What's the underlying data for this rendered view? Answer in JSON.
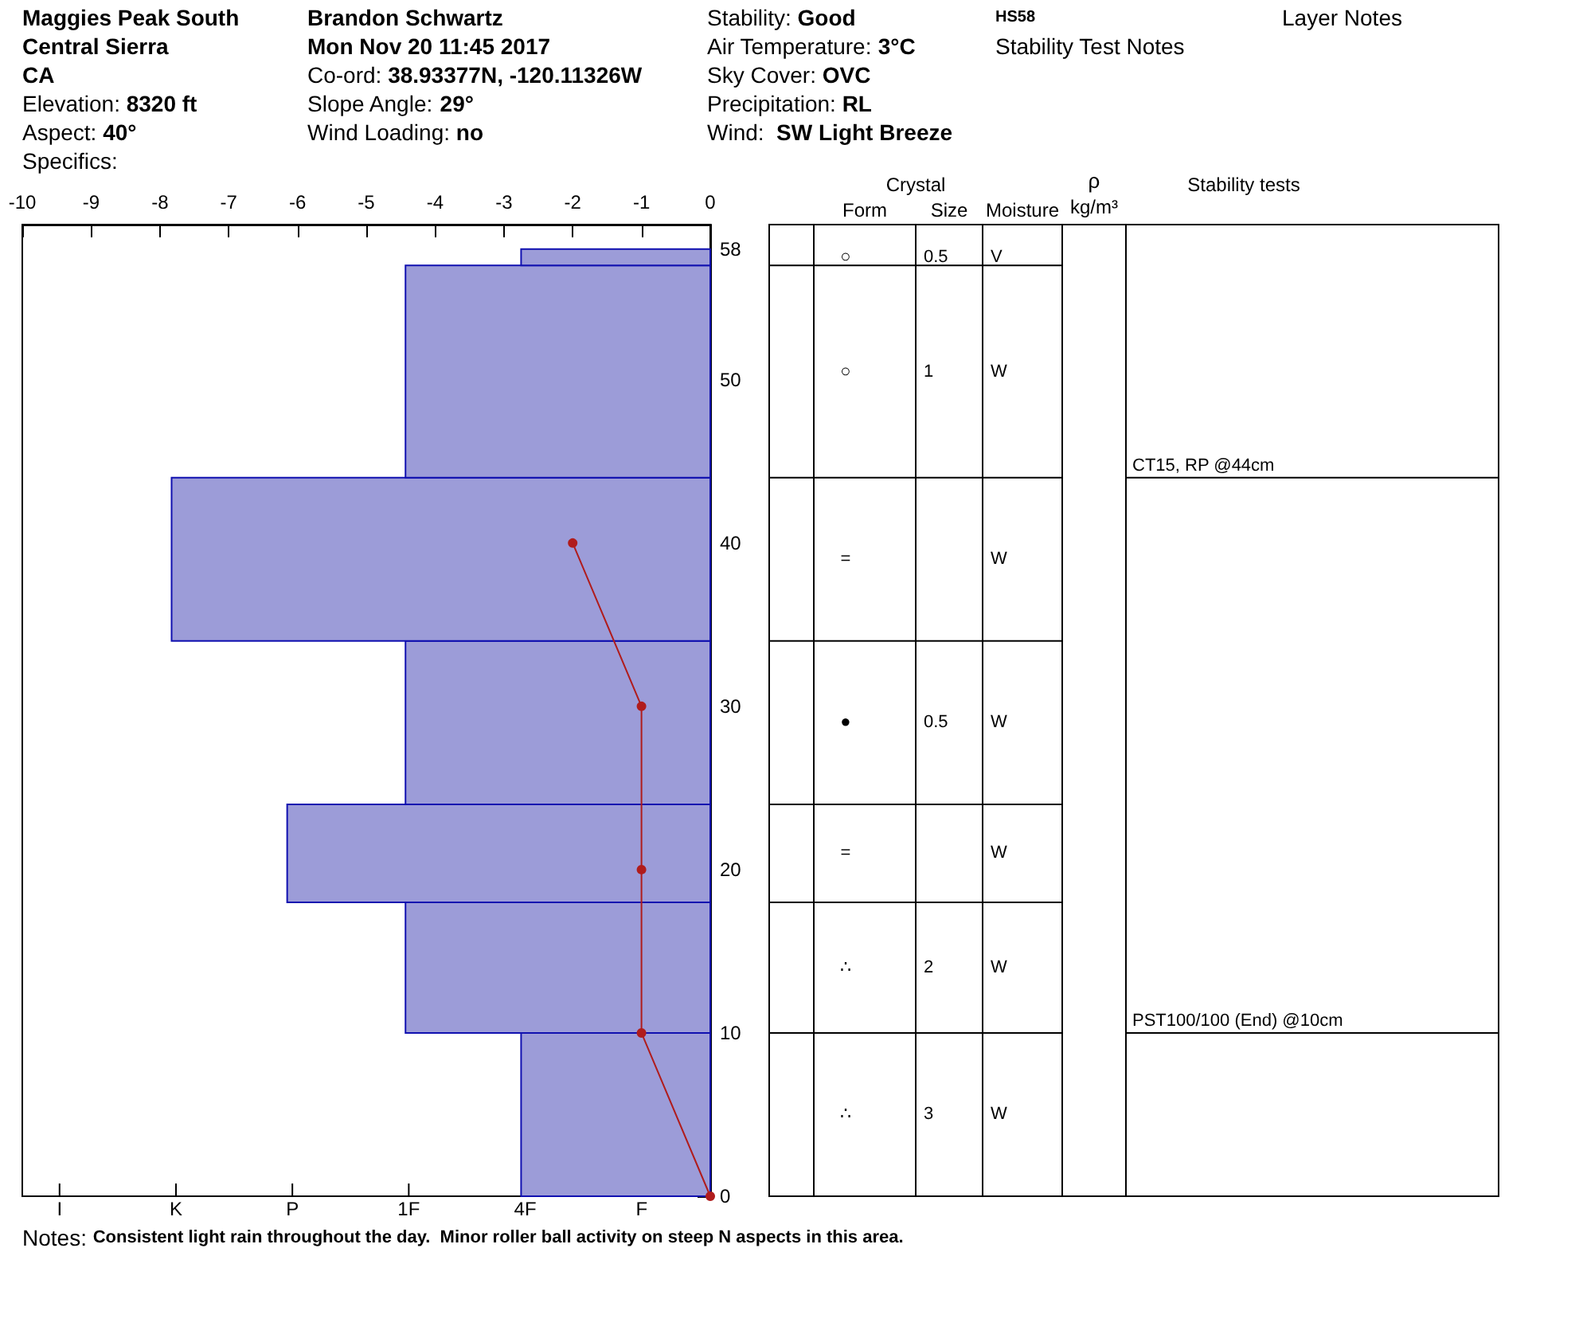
{
  "chart_data": [
    {
      "type": "histogram",
      "orientation": "horizontal",
      "annotations": [
        "Maggies Peak South",
        "Central Sierra",
        "CA",
        "Elevation: 8320 ft",
        "Aspect: 40°",
        "Specifics:",
        "Brandon Schwartz",
        "Mon Nov 20 11:45 2017",
        "Co-ord: 38.93377N, -120.11326W",
        "Slope Angle: 29°",
        "Wind Loading: no",
        "Stability: Good",
        "Air Temperature: 3°C",
        "Sky Cover: OVC",
        "Precipitation: RL",
        "Wind:  SW Light Breeze",
        "Notes: Consistent light rain throughout the day.  Minor roller ball activity on steep N aspects in this area.",
        "I",
        "K",
        "P",
        "1F",
        "4F",
        "F"
      ],
      "series": [
        {
          "type": "histogram",
          "color": "#9c9cd8",
          "bins": [
            0,
            10,
            18,
            24,
            34,
            44,
            57,
            58
          ],
          "values": [
            -2.75,
            -4.43,
            -6.15,
            -4.43,
            -7.83,
            -4.43,
            -2.75
          ]
        },
        {
          "type": "line",
          "color": "#b01c1c",
          "marker": "circle",
          "x": [
            0,
            10,
            20,
            30,
            40
          ],
          "values": [
            0,
            -1,
            -1,
            -1,
            -2
          ]
        }
      ],
      "xlim": [
        -10,
        0
      ],
      "xticks": [
        -10,
        -9,
        -8,
        -7,
        -6,
        -5,
        -4,
        -3,
        -2,
        -1,
        0
      ],
      "ylim": [
        0,
        59.5
      ],
      "yticks": [
        0,
        10,
        20,
        30,
        40,
        50,
        58
      ],
      "grid": false
    },
    {
      "type": "other",
      "categories": [
        "Form",
        "Size",
        "Moisture",
        "Stability tests"
      ],
      "annotations": [
        "Crystal",
        "ρ",
        "kg/m³",
        "HS58",
        "Stability Test Notes",
        "Layer Notes"
      ],
      "cell_labels": [
        [
          "○",
          "0.5",
          "V",
          null
        ],
        [
          "○",
          "1",
          "W",
          "CT15, RP @44cm"
        ],
        [
          "=",
          null,
          "W",
          null
        ],
        [
          "●",
          "0.5",
          "W",
          null
        ],
        [
          "=",
          null,
          "W",
          null
        ],
        [
          "∴",
          "2",
          "W",
          "PST100/100 (End) @10cm"
        ],
        [
          "∴",
          "3",
          "W",
          null
        ]
      ]
    }
  ]
}
